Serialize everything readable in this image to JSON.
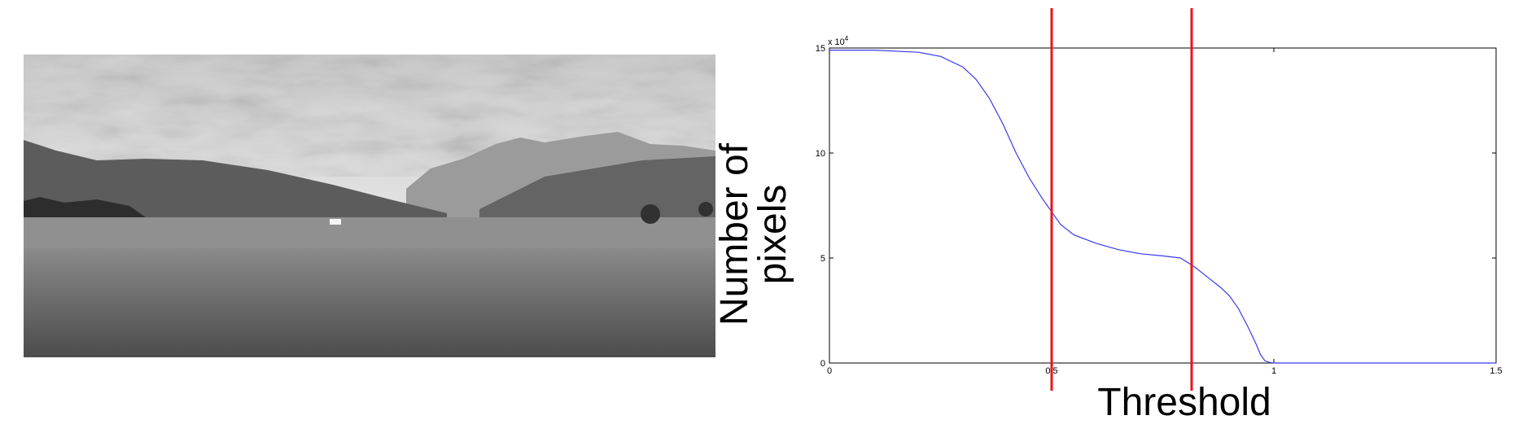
{
  "photo": {
    "subject": "grayscale landscape photograph: grassy valley with hills, distant mountains and cloudy sky"
  },
  "chart_data": {
    "type": "line",
    "title": "",
    "xlabel": "Threshold",
    "ylabel_lines": [
      "Number of",
      "pixels"
    ],
    "xlim": [
      0,
      1.5
    ],
    "ylim": [
      0,
      15
    ],
    "y_multiplier_label": "x 10",
    "y_multiplier_exponent": "4",
    "x_ticks": [
      0,
      0.5,
      1,
      1.5
    ],
    "x_tick_labels": [
      "0",
      "0.5",
      "1",
      "1.5"
    ],
    "y_ticks": [
      0,
      5,
      10,
      15
    ],
    "y_tick_labels": [
      "0",
      "5",
      "10",
      "15"
    ],
    "grid": false,
    "line_color": "#3a3af0",
    "marker_color": "#e8151b",
    "series": [
      {
        "x": [
          0,
          0.1,
          0.2,
          0.25,
          0.3,
          0.33,
          0.36,
          0.39,
          0.42,
          0.45,
          0.48,
          0.5,
          0.52,
          0.55,
          0.6,
          0.65,
          0.7,
          0.75,
          0.79,
          0.82,
          0.85,
          0.88,
          0.9,
          0.92,
          0.94,
          0.96,
          0.97,
          0.98,
          0.99,
          1,
          1.1,
          1.2,
          1.3,
          1.4,
          1.5
        ],
        "y": [
          14.9,
          14.9,
          14.8,
          14.6,
          14.1,
          13.5,
          12.6,
          11.4,
          10.0,
          8.8,
          7.8,
          7.2,
          6.6,
          6.1,
          5.7,
          5.4,
          5.2,
          5.1,
          5.0,
          4.6,
          4.1,
          3.6,
          3.2,
          2.6,
          1.8,
          0.9,
          0.4,
          0.1,
          0.03,
          0,
          0,
          0,
          0,
          0,
          0
        ]
      }
    ],
    "threshold_markers": [
      0.5,
      0.815
    ]
  }
}
